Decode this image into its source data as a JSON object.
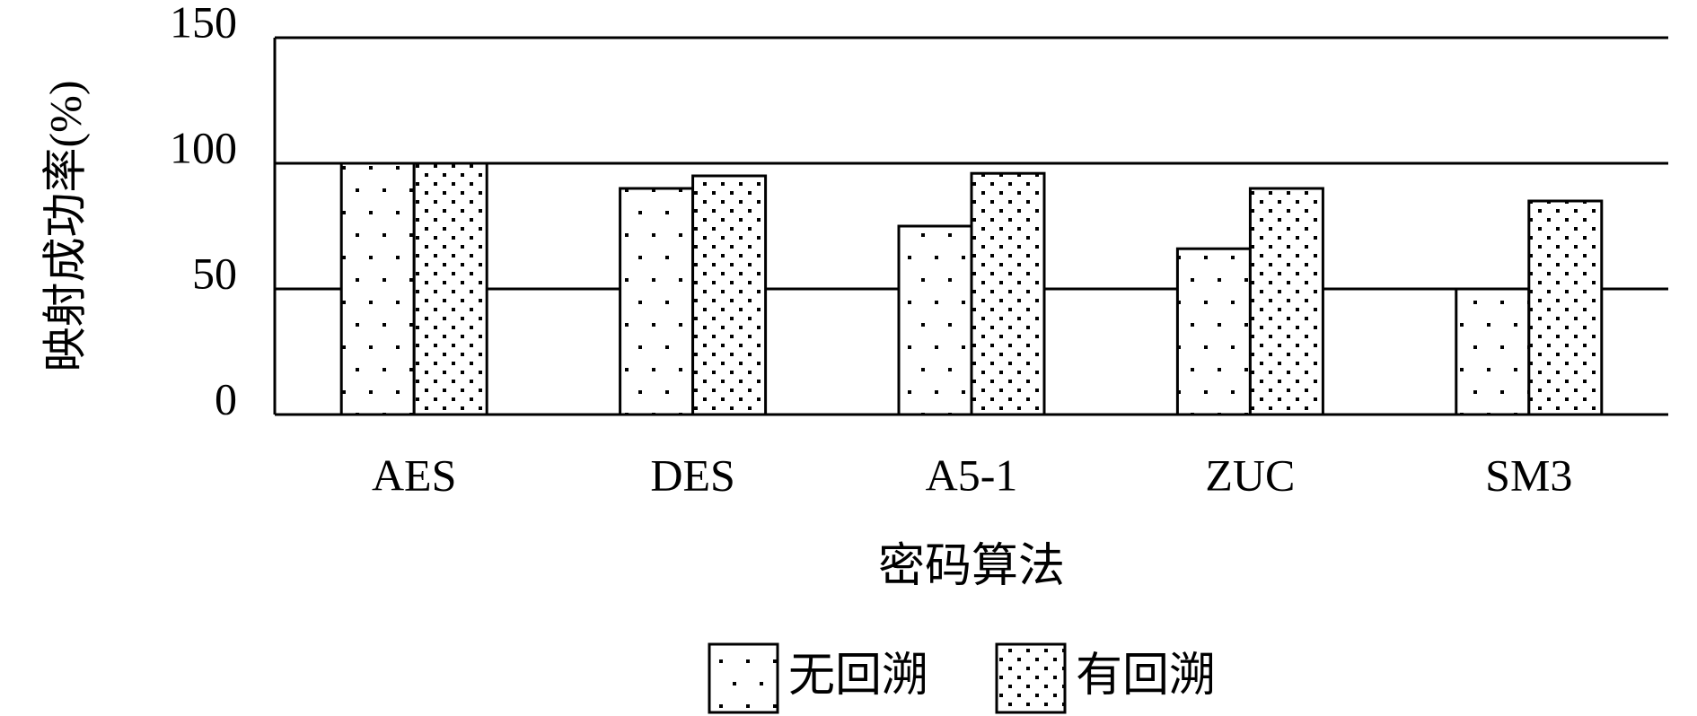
{
  "chart_data": {
    "type": "bar",
    "x_label": "密码算法",
    "y_label": "映射成功率(%)",
    "categories": [
      "AES",
      "DES",
      "A5-1",
      "ZUC",
      "SM3"
    ],
    "series": [
      {
        "name": "无回溯",
        "color": "#000000",
        "pattern": "sparse-dots",
        "values": [
          100,
          90,
          75,
          66,
          50
        ]
      },
      {
        "name": "有回溯",
        "color": "#000000",
        "pattern": "dense-dots",
        "values": [
          100,
          95,
          96,
          90,
          85
        ]
      }
    ],
    "ylim": [
      0,
      150
    ],
    "yticks": [
      0,
      50,
      100,
      150
    ],
    "grid": true,
    "legend": "bottom"
  }
}
